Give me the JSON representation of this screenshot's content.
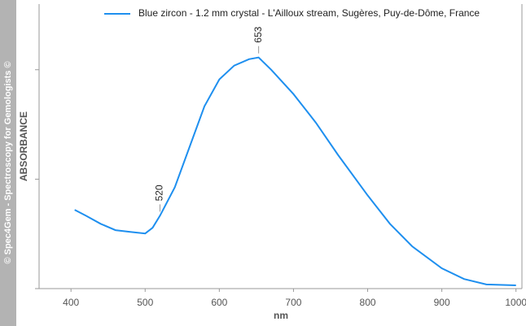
{
  "watermark": "© Spec4Gem - Spectroscopy for Gemologists ©",
  "chart_data": {
    "type": "line",
    "xlabel": "nm",
    "ylabel": "ABSORBANCE",
    "x": [
      405,
      420,
      440,
      460,
      480,
      500,
      510,
      520,
      540,
      560,
      580,
      600,
      620,
      640,
      653,
      670,
      700,
      730,
      760,
      800,
      830,
      860,
      900,
      930,
      960,
      1000
    ],
    "series": [
      {
        "name": "Blue zircon - 1.2 mm crystal - L'Ailloux stream, Sugères, Puy-de-Dôme, France",
        "color": "#1e8fef",
        "values": [
          0.36,
          0.333,
          0.296,
          0.267,
          0.259,
          0.252,
          0.278,
          0.333,
          0.463,
          0.648,
          0.833,
          0.956,
          1.019,
          1.048,
          1.056,
          1.0,
          0.889,
          0.759,
          0.611,
          0.426,
          0.296,
          0.193,
          0.093,
          0.044,
          0.019,
          0.015
        ]
      }
    ],
    "annotations": [
      520,
      653
    ],
    "xlim": [
      357,
      1008
    ],
    "xticks": [
      400,
      500,
      600,
      700,
      800,
      900,
      1000
    ],
    "ylim": [
      0,
      1.3
    ],
    "yticks": [
      0,
      0.5,
      1
    ],
    "legend": "top-right"
  }
}
